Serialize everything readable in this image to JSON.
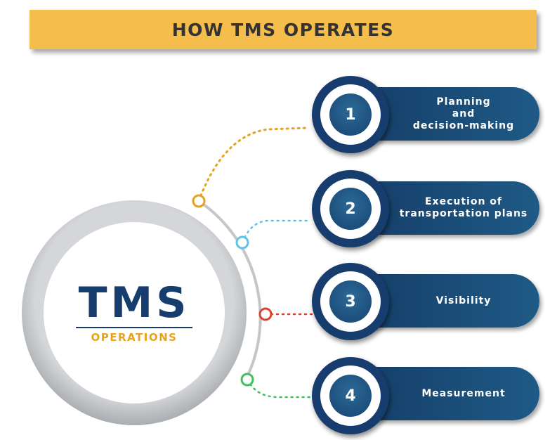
{
  "header": {
    "title": "HOW TMS OPERATES"
  },
  "center": {
    "title": "TMS",
    "subtitle": "OPERATIONS"
  },
  "steps": [
    {
      "number": "1",
      "label": "Planning\nand\ndecision-making",
      "color": "#e6a21d"
    },
    {
      "number": "2",
      "label": "Execution of\ntransportation plans",
      "color": "#5fc4e3"
    },
    {
      "number": "3",
      "label": "Visibility",
      "color": "#d9432f"
    },
    {
      "number": "4",
      "label": "Measurement",
      "color": "#3fbf5f"
    }
  ],
  "colors": {
    "navy": "#163d6e",
    "banner": "#f4bd4c",
    "accent": "#e8a31a",
    "ring": "#c9cbce"
  }
}
